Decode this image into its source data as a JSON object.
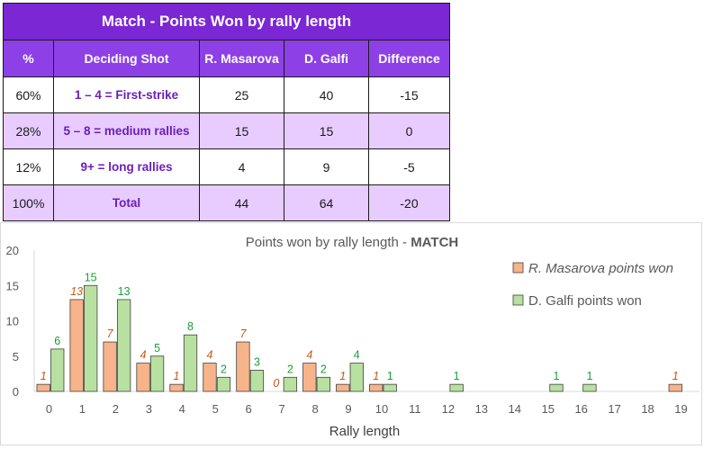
{
  "table": {
    "title": "Match - Points Won by rally length",
    "headers": [
      "%",
      "Deciding Shot",
      "R. Masarova",
      "D. Galfi",
      "Difference"
    ],
    "rows": [
      {
        "pct": "60%",
        "shot": "1 – 4 = First-strike",
        "p1": "25",
        "p2": "40",
        "diff": "-15"
      },
      {
        "pct": "28%",
        "shot": "5 – 8 = medium rallies",
        "p1": "15",
        "p2": "15",
        "diff": "0"
      },
      {
        "pct": "12%",
        "shot": "9+ = long rallies",
        "p1": "4",
        "p2": "9",
        "diff": "-5"
      },
      {
        "pct": "100%",
        "shot": "Total",
        "p1": "44",
        "p2": "64",
        "diff": "-20"
      }
    ]
  },
  "chart_data": {
    "type": "bar",
    "title": "Points won by rally length - ",
    "title_bold": "MATCH",
    "xlabel": "Rally length",
    "ylabel": "",
    "categories": [
      "0",
      "1",
      "2",
      "3",
      "4",
      "5",
      "6",
      "7",
      "8",
      "9",
      "10",
      "11",
      "12",
      "13",
      "14",
      "15",
      "16",
      "17",
      "18",
      "19"
    ],
    "ylim": [
      0,
      20
    ],
    "yticks": [
      "0",
      "5",
      "10",
      "15",
      "20"
    ],
    "legend_position": "right",
    "grid": false,
    "series": [
      {
        "name": "R. Masarova points won",
        "color": "#f7b38a",
        "label_color": "#c55a11",
        "label_style": "italic",
        "values": [
          1,
          13,
          7,
          4,
          1,
          4,
          7,
          0,
          4,
          1,
          1,
          null,
          null,
          null,
          null,
          null,
          null,
          null,
          null,
          1
        ],
        "labels": [
          "1",
          "13",
          "7",
          "4",
          "1",
          "4",
          "7",
          "0",
          "4",
          "1",
          "1",
          "",
          "",
          "",
          "",
          "",
          "",
          "",
          "",
          "1"
        ]
      },
      {
        "name": "D. Galfi points won",
        "color": "#b8e0a0",
        "label_color": "#18a038",
        "label_style": "normal",
        "values": [
          6,
          15,
          13,
          5,
          8,
          2,
          3,
          2,
          2,
          4,
          1,
          null,
          1,
          null,
          null,
          1,
          1,
          null,
          null,
          null
        ],
        "labels": [
          "6",
          "15",
          "13",
          "5",
          "8",
          "2",
          "3",
          "2",
          "2",
          "4",
          "1",
          "",
          "1",
          "",
          "",
          "1",
          "1",
          "",
          "",
          ""
        ]
      }
    ]
  }
}
